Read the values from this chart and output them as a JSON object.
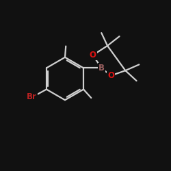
{
  "background_color": "#111111",
  "bond_color": "#d0d0d0",
  "atom_colors": {
    "B": "#9a6060",
    "O": "#dd1111",
    "Br": "#bb2222",
    "C": "#d0d0d0"
  },
  "figsize": [
    2.5,
    2.5
  ],
  "dpi": 100
}
